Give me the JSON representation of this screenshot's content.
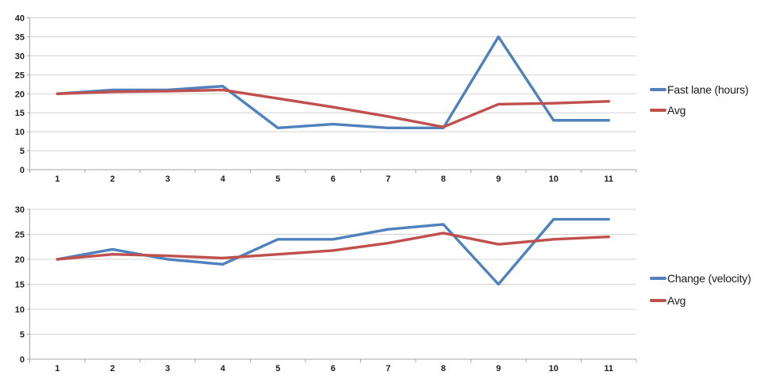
{
  "styles": {
    "background": "#FFFFFF",
    "gridline_color": "#D3D3D3",
    "axis_color": "#A6A6A6",
    "tick_label_color": "#1F1F1F",
    "series1_color": "#4F81BD",
    "series2_color": "#C0504D"
  },
  "chart_data": [
    {
      "type": "line",
      "title": "",
      "xlabel": "",
      "ylabel": "",
      "categories": [
        "1",
        "2",
        "3",
        "4",
        "5",
        "6",
        "7",
        "8",
        "9",
        "10",
        "11"
      ],
      "series": [
        {
          "name": "Fast lane (hours)",
          "color": "#4F81BD",
          "values": [
            20,
            21,
            21,
            22,
            11,
            12,
            11,
            11,
            35,
            13,
            13
          ]
        },
        {
          "name": "Avg",
          "color": "#C0504D",
          "values": [
            20,
            20.5,
            20.7,
            21,
            18.75,
            16.5,
            14,
            11.25,
            17.25,
            17.5,
            18
          ]
        }
      ],
      "ylim": [
        0,
        40
      ],
      "ytick_step": 5,
      "grid": true,
      "legend_position": "right"
    },
    {
      "type": "line",
      "title": "",
      "xlabel": "",
      "ylabel": "",
      "categories": [
        "1",
        "2",
        "3",
        "4",
        "5",
        "6",
        "7",
        "8",
        "9",
        "10",
        "11"
      ],
      "series": [
        {
          "name": "Change (velocity)",
          "color": "#4F81BD",
          "values": [
            20,
            22,
            20,
            19,
            24,
            24,
            26,
            27,
            15,
            28,
            28
          ]
        },
        {
          "name": "Avg",
          "color": "#C0504D",
          "values": [
            20,
            21,
            20.7,
            20.25,
            21,
            21.75,
            23.25,
            25.25,
            23,
            24,
            24.5
          ]
        }
      ],
      "ylim": [
        0,
        30
      ],
      "ytick_step": 5,
      "grid": true,
      "legend_position": "right"
    }
  ]
}
